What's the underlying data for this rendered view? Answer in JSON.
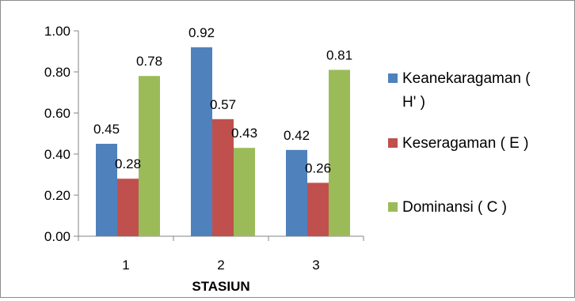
{
  "chart_data": {
    "type": "bar",
    "title": "",
    "xlabel": "STASIUN",
    "ylabel": "",
    "categories": [
      "1",
      "2",
      "3"
    ],
    "ylim": [
      0,
      1
    ],
    "yticks": [
      "0.00",
      "0.20",
      "0.40",
      "0.60",
      "0.80",
      "1.00"
    ],
    "grid": false,
    "legend_position": "right",
    "series": [
      {
        "name_lines": [
          "Keanekaragaman (",
          "H' )"
        ],
        "color": "#4f81bd",
        "values": [
          0.45,
          0.92,
          0.42
        ],
        "labels": [
          "0.45",
          "0.92",
          "0.42"
        ]
      },
      {
        "name_lines": [
          "Keseragaman ( E )"
        ],
        "color": "#c0504d",
        "values": [
          0.28,
          0.57,
          0.26
        ],
        "labels": [
          "0.28",
          "0.57",
          "0.26"
        ]
      },
      {
        "name_lines": [
          "Dominansi ( C )"
        ],
        "color": "#9bbb59",
        "values": [
          0.78,
          0.43,
          0.81
        ],
        "labels": [
          "0.78",
          "0.43",
          "0.81"
        ]
      }
    ]
  }
}
